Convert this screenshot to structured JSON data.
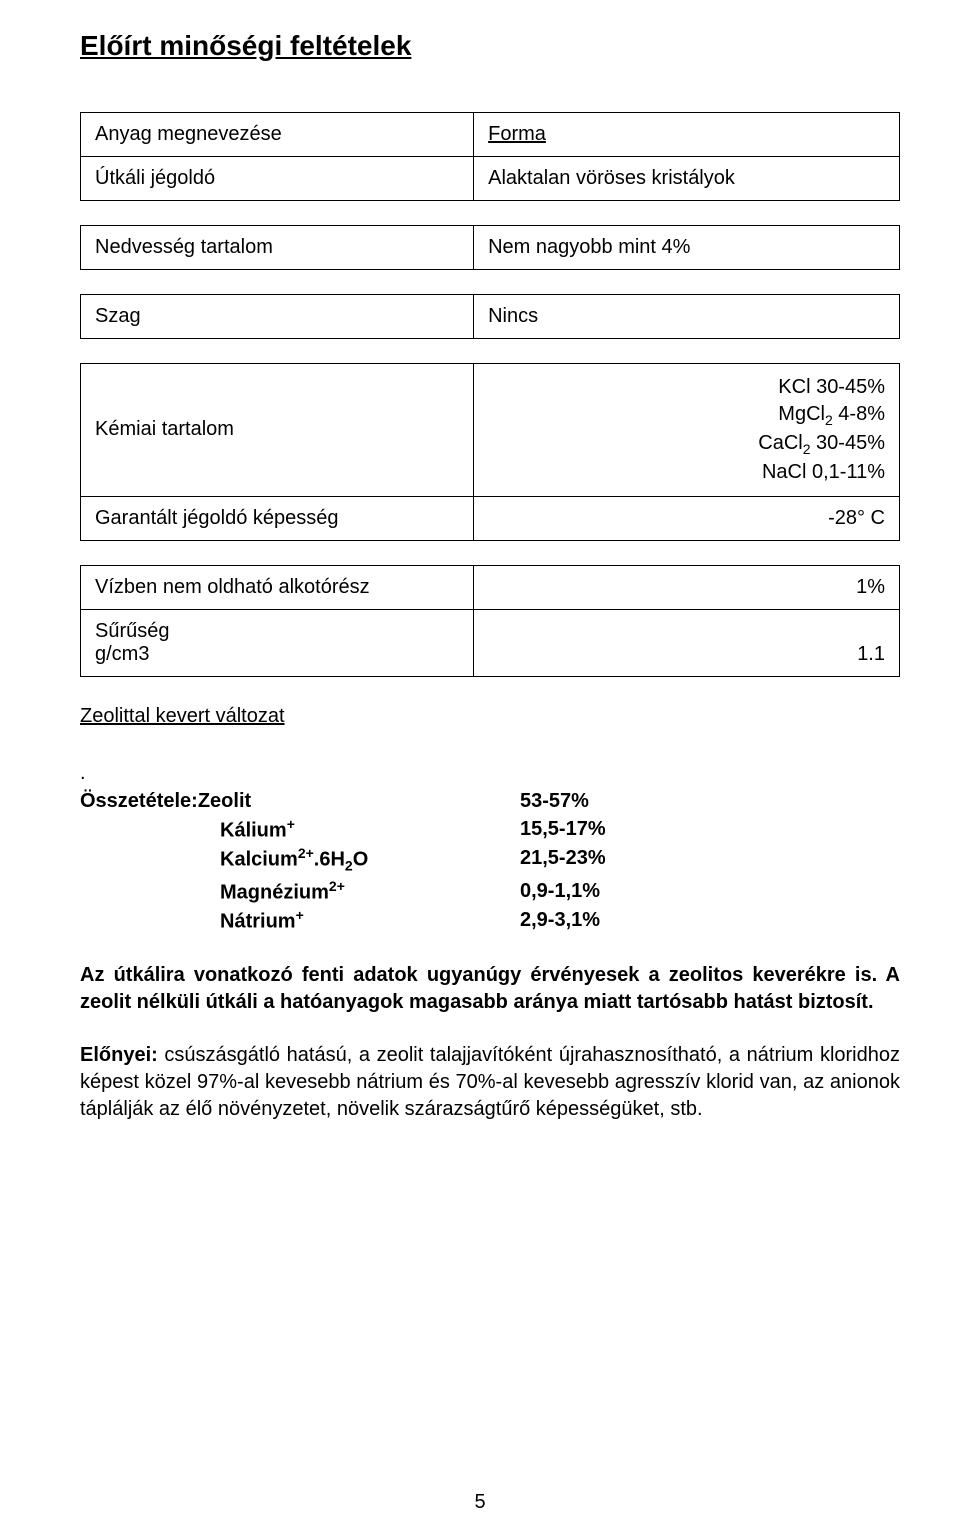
{
  "title": "Előírt minőségi feltételek",
  "table1": {
    "r0": {
      "label": "Anyag megnevezése",
      "value": "Forma"
    },
    "r1": {
      "label": "Útkáli jégoldó",
      "value": "Alaktalan vöröses kristályok"
    }
  },
  "table2": {
    "r0": {
      "label": "Nedvesség tartalom",
      "value": "Nem nagyobb mint 4%"
    }
  },
  "table3": {
    "r0": {
      "label": "Szag",
      "value": "Nincs"
    }
  },
  "table4": {
    "chem_label": "Kémiai tartalom",
    "chem_lines": {
      "l0": "KCl 30-45%",
      "l1_pre": "MgCl",
      "l1_sub": "2",
      "l1_post": " 4-8%",
      "l2_pre": "CaCl",
      "l2_sub": "2",
      "l2_post": " 30-45%",
      "l3": "NaCl 0,1-11%"
    },
    "guar_label": "Garantált jégoldó képesség",
    "guar_value": "-28° C"
  },
  "table5": {
    "r0": {
      "label": "Vízben nem oldható alkotórész",
      "value": "1%"
    },
    "r1": {
      "label": "Sűrűség\ng/cm3",
      "value": "1.1"
    }
  },
  "zeolit_heading": "Zeolittal kevert változat",
  "dot": ".",
  "composition": {
    "lead": "Összetétele:",
    "rows": {
      "r0": {
        "name": "Zeolit",
        "sup": "",
        "sub": "",
        "tail": "",
        "val": "53-57%"
      },
      "r1": {
        "name": "Kálium",
        "sup": "+",
        "sub": "",
        "tail": "",
        "val": "15,5-17%"
      },
      "r2": {
        "name": "Kalcium",
        "sup": "2+",
        "sub": "2",
        "tail_pre": ".6H",
        "tail_post": "O",
        "val": "21,5-23%"
      },
      "r3": {
        "name": "Magnézium",
        "sup": "2+",
        "sub": "",
        "tail": "",
        "val": "0,9-1,1%"
      },
      "r4": {
        "name": "Nátrium",
        "sup": "+",
        "sub": "",
        "tail": "",
        "val": "2,9-3,1%"
      }
    }
  },
  "para1_a": "Az útkálira vonatkozó fenti adatok ugyanúgy érvényesek a zeolitos keverékre is. ",
  "para1_b": "A zeolit nélküli útkáli a hatóanyagok magasabb aránya miatt tartósabb hatást biztosít.",
  "para2_lead": "Előnyei:",
  "para2_body": " csúszásgátló hatású, a zeolit talajjavítóként újrahasznosítható, a nátrium kloridhoz képest közel 97%-al kevesebb nátrium és 70%-al kevesebb agresszív klorid van, az anionok táplálják az élő növényzetet, növelik szárazságtűrő képességüket, stb.",
  "page_number": "5"
}
